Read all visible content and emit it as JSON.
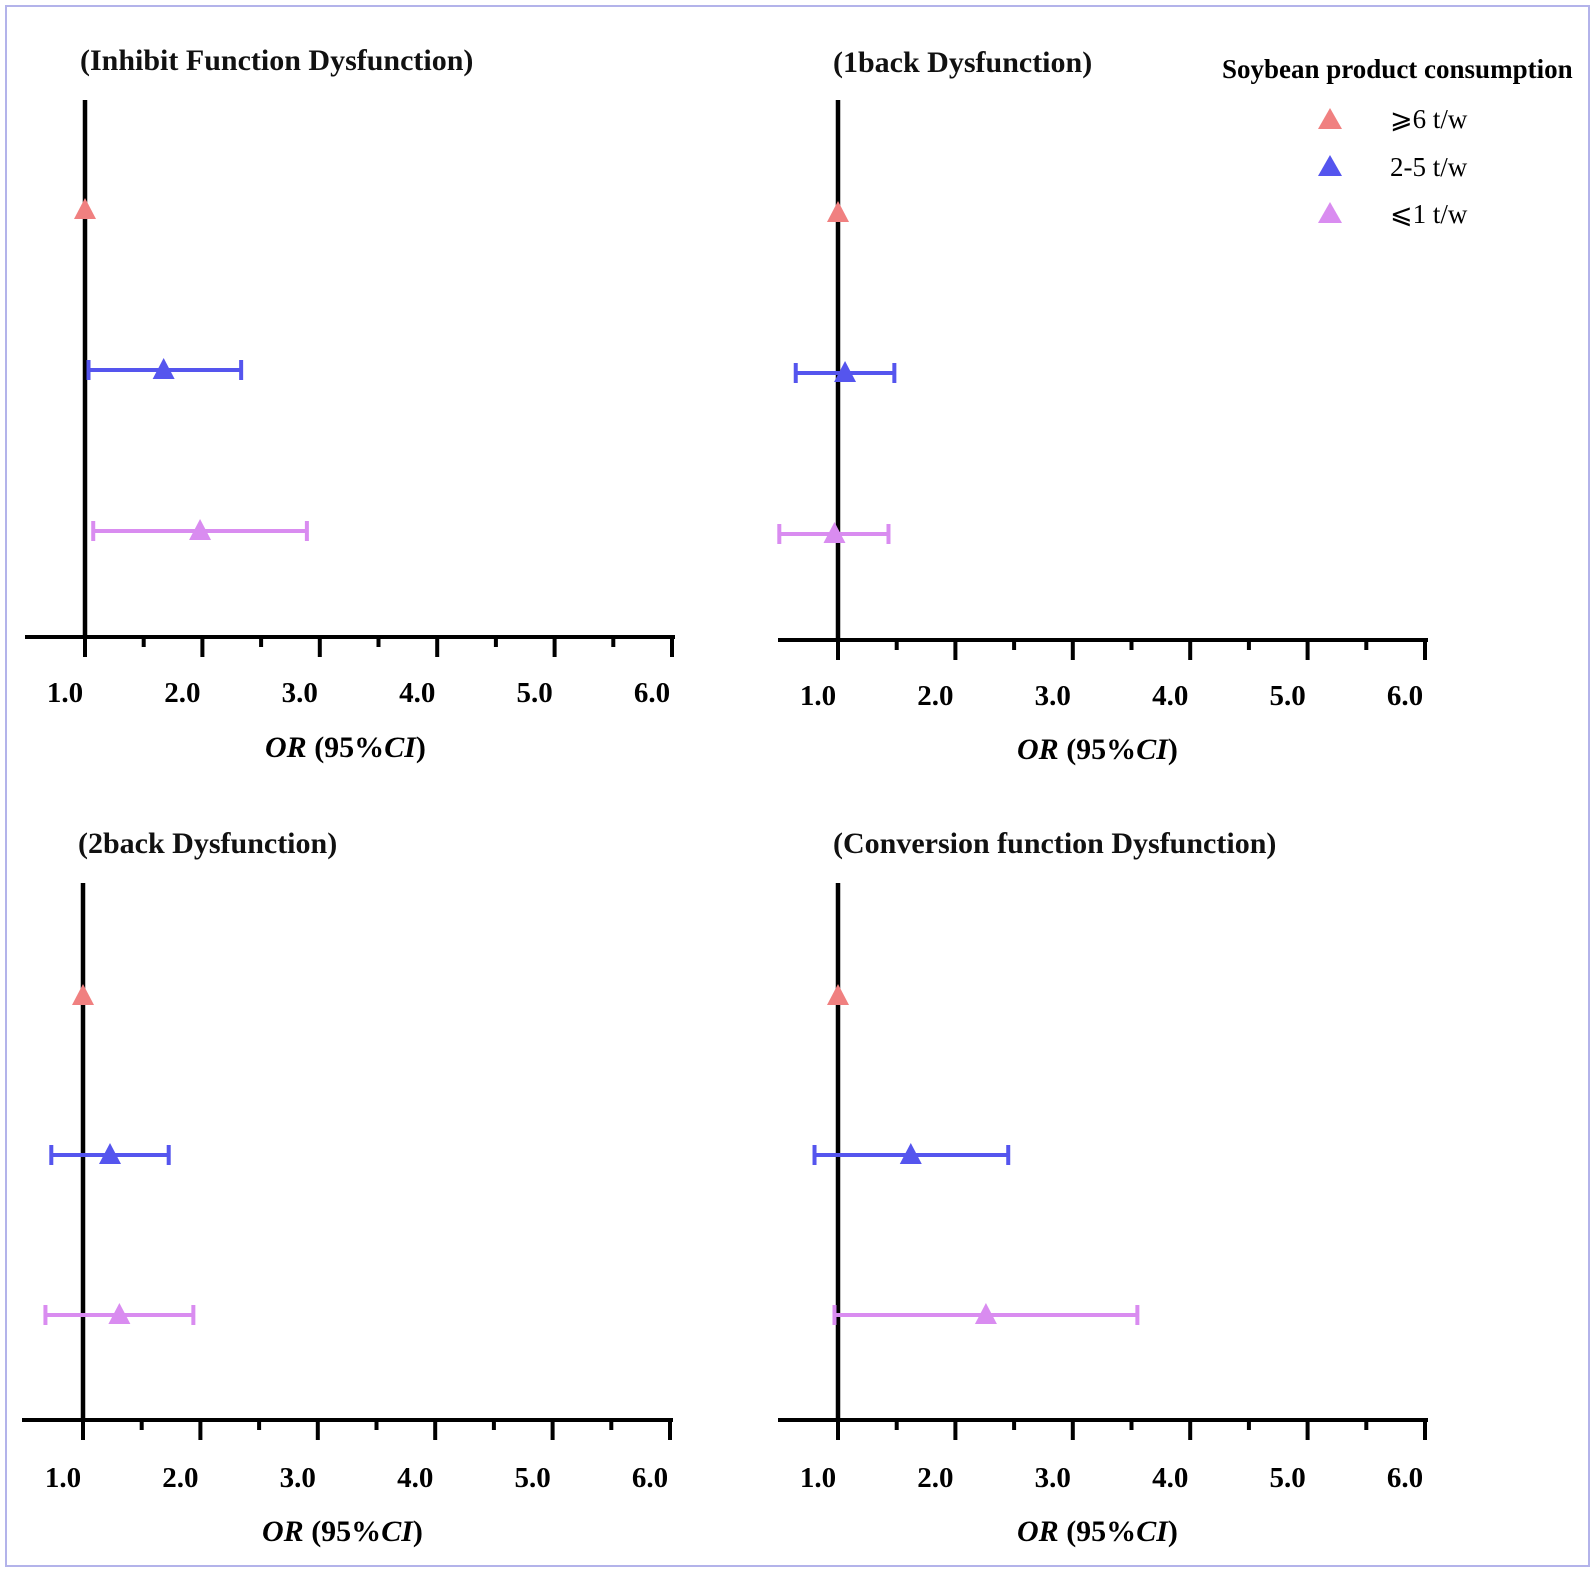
{
  "legend": {
    "title": "Soybean product consumption",
    "items": [
      {
        "label": "⩾6 t/w",
        "color": "#f08080"
      },
      {
        "label": "2-5 t/w",
        "color": "#5555ee"
      },
      {
        "label": "⩽1 t/w",
        "color": "#d98cf0"
      }
    ]
  },
  "chart_data": [
    {
      "type": "forest",
      "title": "(Inhibit Function Dysfunction)",
      "xlabel_italic_a": "OR",
      "xlabel_mid": " (95%",
      "xlabel_italic_b": "CI",
      "xlabel_end": ")",
      "xlim": [
        0.5,
        6.0
      ],
      "ticks": [
        "1.0",
        "2.0",
        "3.0",
        "4.0",
        "5.0",
        "6.0"
      ],
      "reference": 1.0,
      "series": [
        {
          "name": "⩾6 t/w",
          "or": 1.0,
          "lower": null,
          "upper": null
        },
        {
          "name": "2-5 t/w",
          "or": 1.67,
          "lower": 1.03,
          "upper": 2.33
        },
        {
          "name": "⩽1 t/w",
          "or": 1.98,
          "lower": 1.07,
          "upper": 2.89
        }
      ]
    },
    {
      "type": "forest",
      "title": "(1back Dysfunction)",
      "xlabel_italic_a": "OR",
      "xlabel_mid": " (95%",
      "xlabel_italic_b": "CI",
      "xlabel_end": ")",
      "xlim": [
        0.5,
        6.0
      ],
      "ticks": [
        "1.0",
        "2.0",
        "3.0",
        "4.0",
        "5.0",
        "6.0"
      ],
      "reference": 1.0,
      "series": [
        {
          "name": "⩾6 t/w",
          "or": 1.0,
          "lower": null,
          "upper": null
        },
        {
          "name": "2-5 t/w",
          "or": 1.06,
          "lower": 0.64,
          "upper": 1.48
        },
        {
          "name": "⩽1 t/w",
          "or": 0.97,
          "lower": 0.5,
          "upper": 1.43
        }
      ]
    },
    {
      "type": "forest",
      "title": "(2back Dysfunction)",
      "xlabel_italic_a": "OR",
      "xlabel_mid": " (95%",
      "xlabel_italic_b": "CI",
      "xlabel_end": ")",
      "xlim": [
        0.5,
        6.0
      ],
      "ticks": [
        "1.0",
        "2.0",
        "3.0",
        "4.0",
        "5.0",
        "6.0"
      ],
      "reference": 1.0,
      "series": [
        {
          "name": "⩾6 t/w",
          "or": 1.0,
          "lower": null,
          "upper": null
        },
        {
          "name": "2-5 t/w",
          "or": 1.23,
          "lower": 0.73,
          "upper": 1.73
        },
        {
          "name": "⩽1 t/w",
          "or": 1.31,
          "lower": 0.68,
          "upper": 1.94
        }
      ]
    },
    {
      "type": "forest",
      "title": "(Conversion function Dysfunction)",
      "xlabel_italic_a": "OR",
      "xlabel_mid": " (95%",
      "xlabel_italic_b": "CI",
      "xlabel_end": ")",
      "xlim": [
        0.5,
        6.0
      ],
      "ticks": [
        "1.0",
        "2.0",
        "3.0",
        "4.0",
        "5.0",
        "6.0"
      ],
      "reference": 1.0,
      "series": [
        {
          "name": "⩾6 t/w",
          "or": 1.0,
          "lower": null,
          "upper": null
        },
        {
          "name": "2-5 t/w",
          "or": 1.62,
          "lower": 0.8,
          "upper": 2.45
        },
        {
          "name": "⩽1 t/w",
          "or": 2.26,
          "lower": 0.97,
          "upper": 3.55
        }
      ]
    }
  ]
}
